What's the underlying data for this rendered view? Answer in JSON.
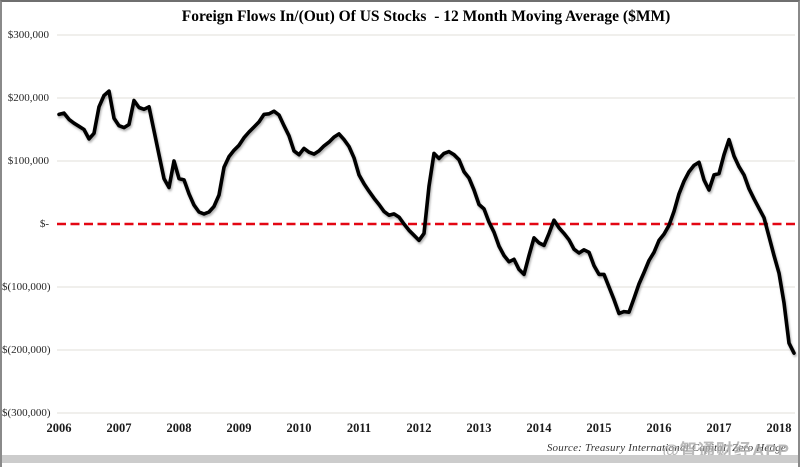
{
  "window": {
    "watermark": "@智通财经APP"
  },
  "chart": {
    "title": "Foreign Flows In/(Out) Of US Stocks  - 12 Month Moving Average ($MM)",
    "source": "Source: Treasury International Capital, Zero Hedge",
    "y_axis": {
      "labels": [
        {
          "text": "$300,000",
          "value": 300000
        },
        {
          "text": "$200,000",
          "value": 200000
        },
        {
          "text": "$100,000",
          "value": 100000
        },
        {
          "text": "$-",
          "value": 0
        },
        {
          "text": "$(100,000)",
          "value": -100000
        },
        {
          "text": "$(200,000)",
          "value": -200000
        },
        {
          "text": "$(300,000)",
          "value": -300000
        }
      ]
    },
    "x_axis": {
      "years": [
        "2006",
        "2007",
        "2008",
        "2009",
        "2010",
        "2011",
        "2012",
        "2013",
        "2014",
        "2015",
        "2016",
        "2017",
        "2018"
      ]
    },
    "colors": {
      "line": "#000000",
      "zero_line": "#e30613",
      "gridline": "#e2dfd9",
      "watermark": "#a9a9a9",
      "bottom_bar": "#cccccc"
    }
  },
  "chart_data": {
    "type": "line",
    "title": "Foreign Flows In/(Out) Of US Stocks  - 12 Month Moving Average ($MM)",
    "unit": "$MM",
    "frequency": "monthly",
    "x_start": "2006-01",
    "x_end": "2018-04",
    "ylim": [
      -300000,
      300000
    ],
    "grid": "horizontal-only",
    "legend": "none",
    "zero_line": {
      "value": 0,
      "style": "dashed",
      "color": "#e30613"
    },
    "x_tick_labels": [
      "2006",
      "2007",
      "2008",
      "2009",
      "2010",
      "2011",
      "2012",
      "2013",
      "2014",
      "2015",
      "2016",
      "2017",
      "2018"
    ],
    "series": [
      {
        "name": "Foreign flows into US stocks, 12-month moving average",
        "color": "#000000",
        "values": [
          174000,
          176000,
          166000,
          160000,
          155000,
          150000,
          135000,
          144000,
          186000,
          204000,
          211000,
          168000,
          156000,
          153000,
          158000,
          196000,
          185000,
          182000,
          186000,
          148000,
          110000,
          72000,
          58000,
          100000,
          72000,
          70000,
          48000,
          30000,
          19000,
          16000,
          19000,
          28000,
          46000,
          90000,
          107000,
          117000,
          125000,
          137000,
          146000,
          154000,
          162000,
          174000,
          175000,
          179000,
          173000,
          156000,
          140000,
          116000,
          110000,
          120000,
          114000,
          111000,
          116000,
          124000,
          130000,
          138000,
          143000,
          134000,
          123000,
          105000,
          78000,
          64000,
          52000,
          41000,
          31000,
          20000,
          14000,
          16000,
          11000,
          0,
          -10000,
          -18000,
          -26000,
          -15000,
          60000,
          112000,
          104000,
          112000,
          115000,
          110000,
          102000,
          83000,
          73000,
          54000,
          31000,
          24000,
          3000,
          -13000,
          -35000,
          -50000,
          -60000,
          -56000,
          -72000,
          -80000,
          -50000,
          -22000,
          -30000,
          -34000,
          -15000,
          6000,
          -6000,
          -15000,
          -25000,
          -40000,
          -46000,
          -41000,
          -45000,
          -66000,
          -80000,
          -80000,
          -100000,
          -120000,
          -142000,
          -139000,
          -140000,
          -118000,
          -95000,
          -77000,
          -58000,
          -45000,
          -26000,
          -16000,
          -2000,
          20000,
          48000,
          68000,
          83000,
          93000,
          98000,
          70000,
          54000,
          78000,
          80000,
          110000,
          134000,
          108000,
          91000,
          78000,
          56000,
          40000,
          25000,
          10000,
          -20000,
          -50000,
          -78000,
          -125000,
          -189000,
          -205000
        ]
      }
    ],
    "source": "Source: Treasury International Capital, Zero Hedge"
  }
}
